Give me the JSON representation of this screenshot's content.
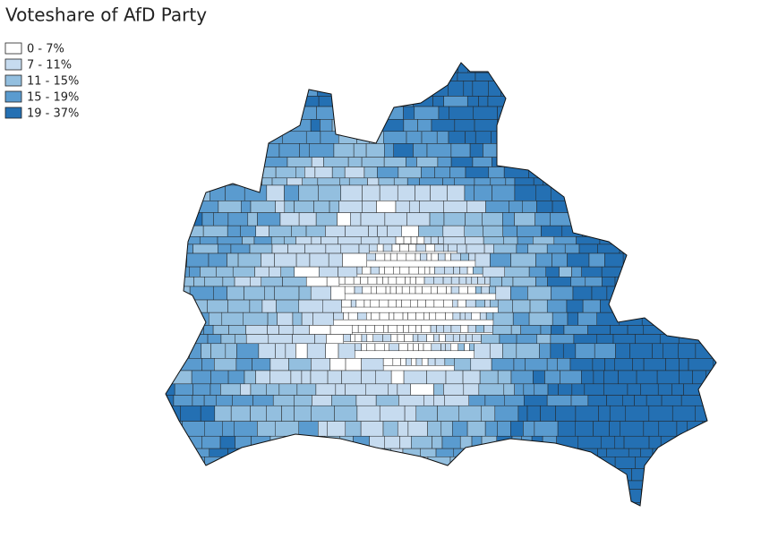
{
  "title": "Voteshare of AfD Party",
  "legend": [
    {
      "label": "0 - 7%",
      "color": "#ffffff"
    },
    {
      "label": "7 - 11%",
      "color": "#c6dbef"
    },
    {
      "label": "11 - 15%",
      "color": "#93bfdf"
    },
    {
      "label": "15 - 19%",
      "color": "#5a9bcf"
    },
    {
      "label": "19 - 37%",
      "color": "#2470b3"
    }
  ]
}
